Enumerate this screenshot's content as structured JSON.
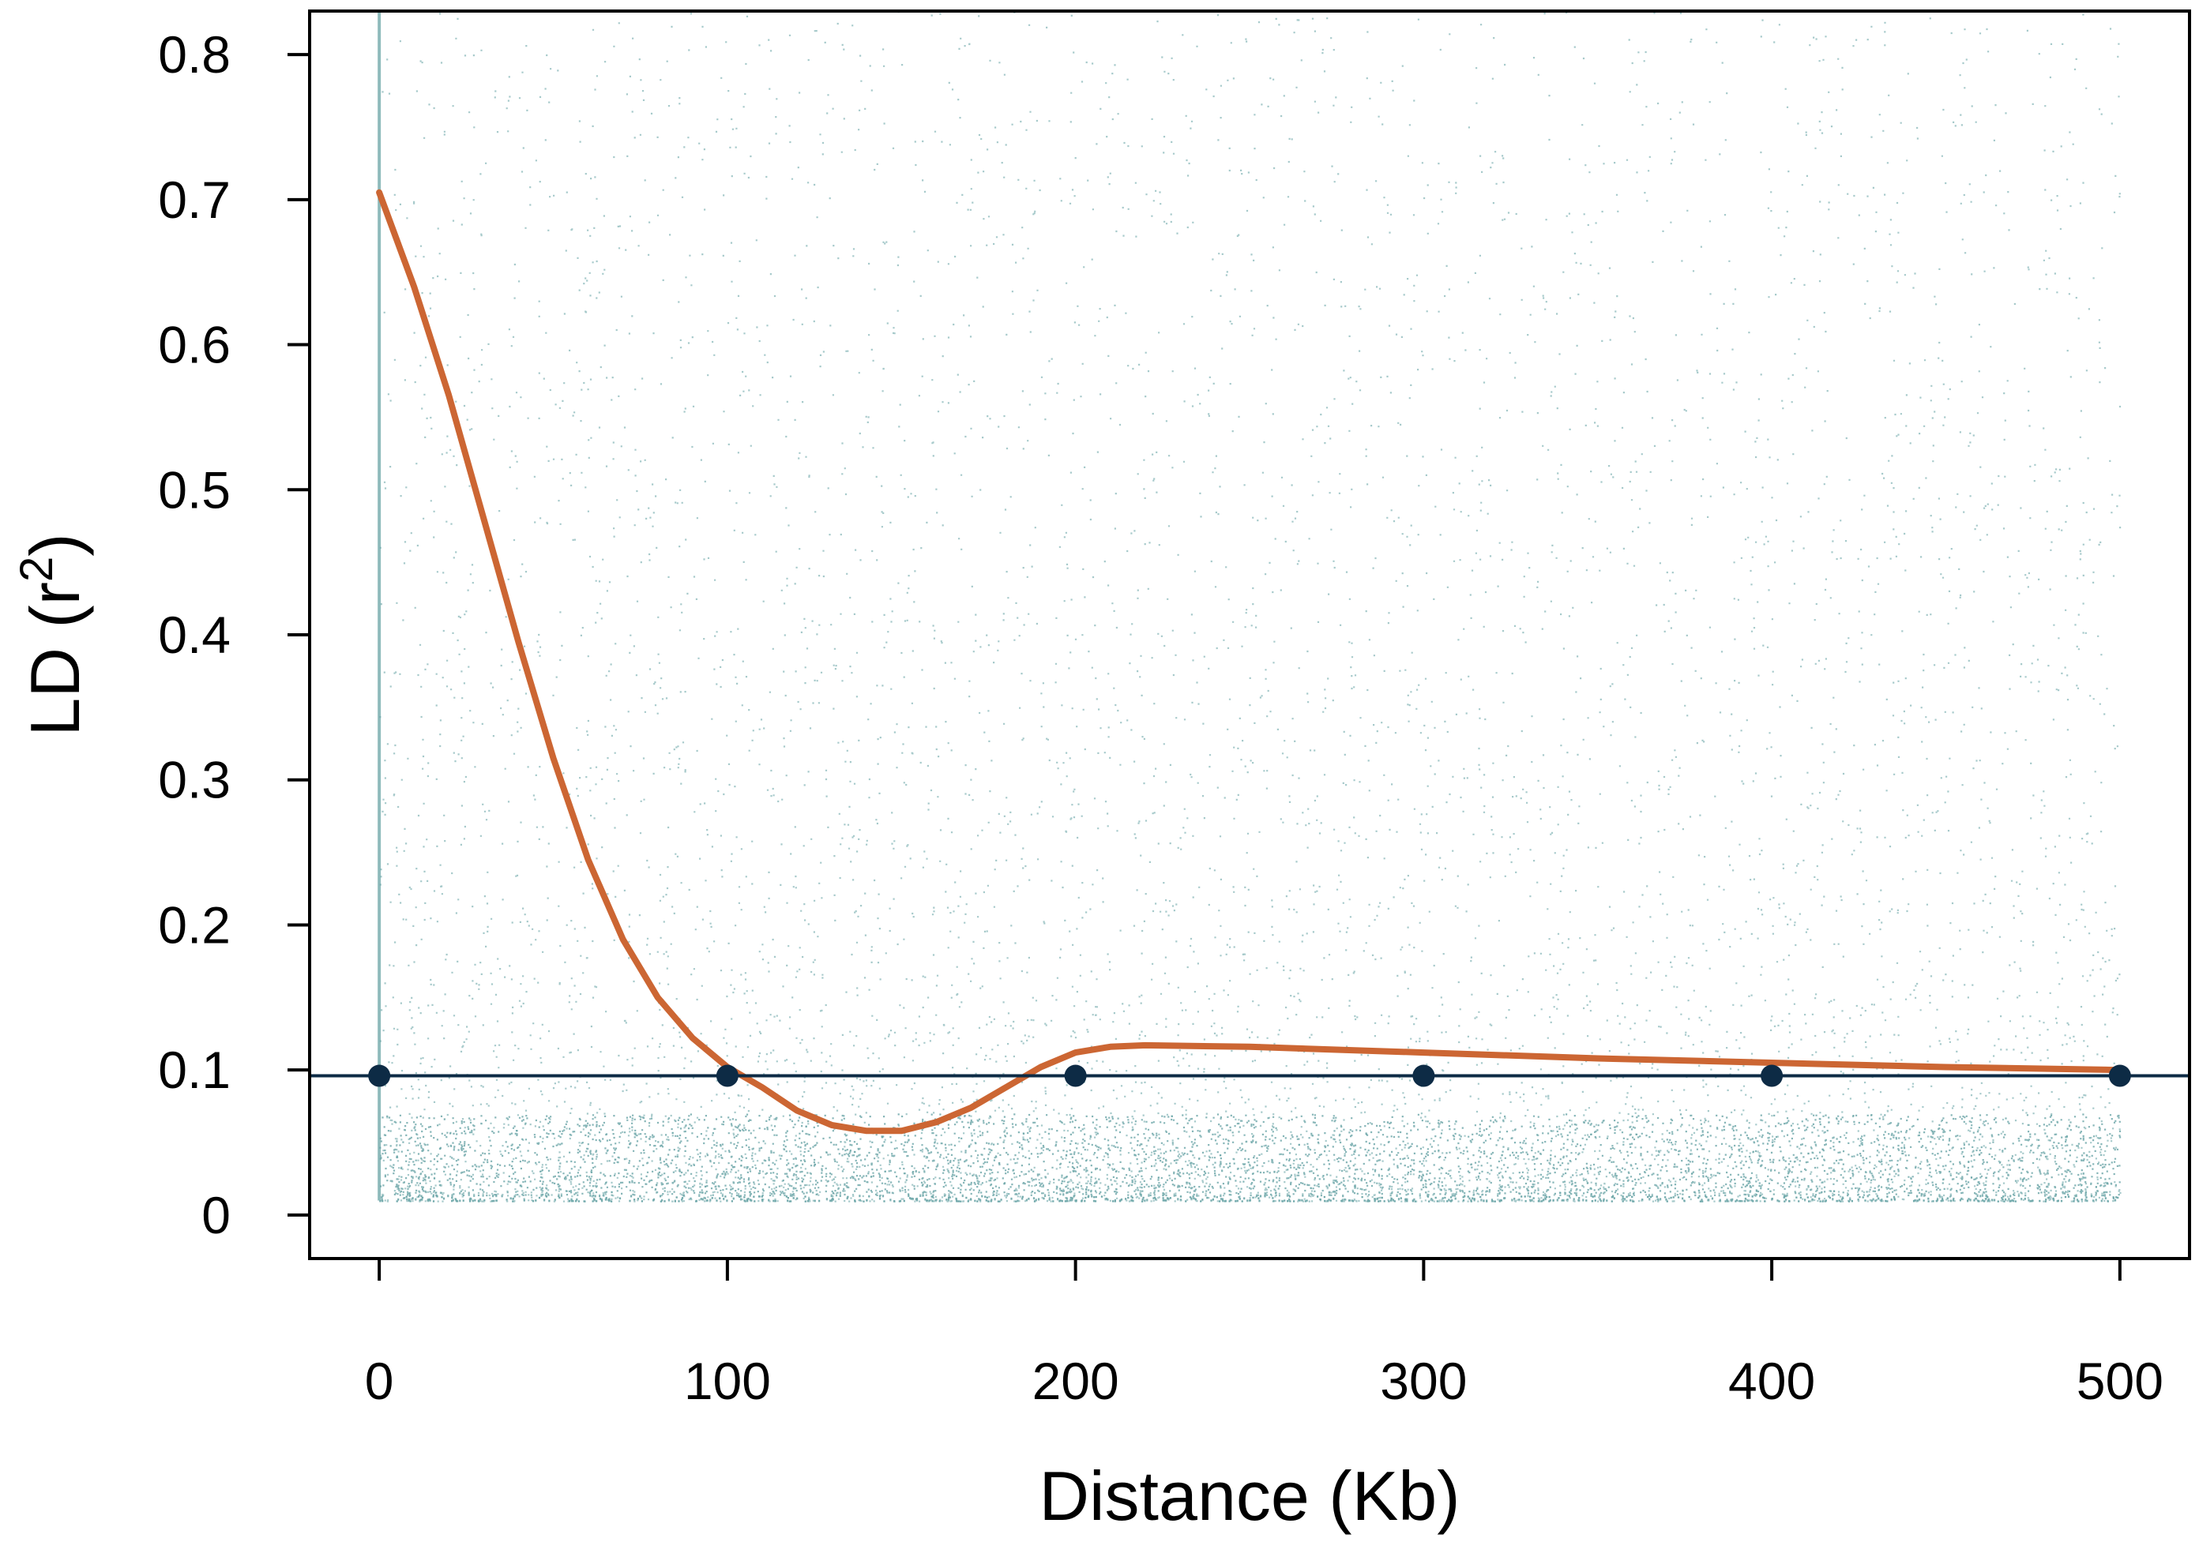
{
  "chart_data": {
    "type": "scatter",
    "xlabel": "Distance (Kb)",
    "ylabel_main": "LD (r",
    "ylabel_sup": "2",
    "ylabel_close": ")",
    "xlim": [
      -20,
      520
    ],
    "ylim": [
      -0.03,
      0.83
    ],
    "xticks": [
      0,
      100,
      200,
      300,
      400,
      500
    ],
    "yticks": [
      0,
      0.1,
      0.2,
      0.3,
      0.4,
      0.5,
      0.6,
      0.7,
      0.8
    ],
    "xtick_labels": [
      "0",
      "100",
      "200",
      "300",
      "400",
      "500"
    ],
    "ytick_labels": [
      "0",
      "0.1",
      "0.2",
      "0.3",
      "0.4",
      "0.5",
      "0.6",
      "0.7",
      "0.8"
    ],
    "grid": false,
    "scatter_color": "#5f9ea0",
    "series": [
      {
        "kind": "decay_curve",
        "color": "#cc6633",
        "x": [
          0,
          10,
          20,
          30,
          40,
          50,
          60,
          70,
          80,
          90,
          100,
          110,
          120,
          130,
          140,
          150,
          160,
          170,
          180,
          190,
          200,
          210,
          220,
          250,
          300,
          350,
          400,
          450,
          500
        ],
        "y": [
          0.705,
          0.64,
          0.565,
          0.48,
          0.395,
          0.315,
          0.245,
          0.19,
          0.15,
          0.122,
          0.102,
          0.088,
          0.072,
          0.062,
          0.058,
          0.058,
          0.064,
          0.074,
          0.088,
          0.102,
          0.112,
          0.116,
          0.117,
          0.116,
          0.112,
          0.108,
          0.105,
          0.102,
          0.1
        ]
      },
      {
        "kind": "threshold_line",
        "color": "#0d2b45",
        "y": 0.096
      },
      {
        "kind": "threshold_points",
        "color": "#0d2b45",
        "x": [
          0,
          100,
          200,
          300,
          400,
          500
        ],
        "y": [
          0.096,
          0.096,
          0.096,
          0.096,
          0.096,
          0.096
        ]
      }
    ]
  }
}
